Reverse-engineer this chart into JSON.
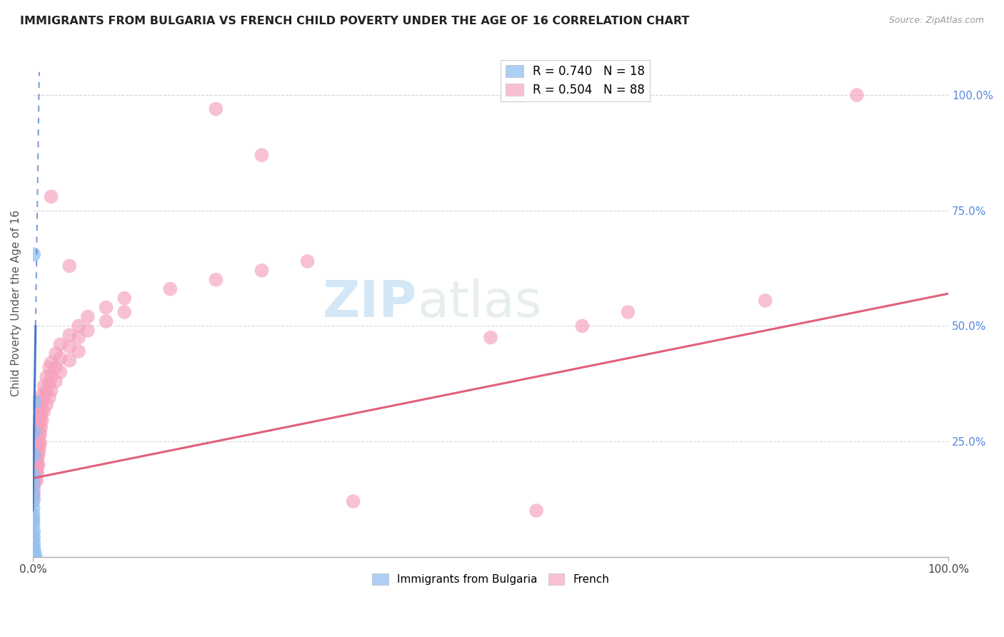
{
  "title": "IMMIGRANTS FROM BULGARIA VS FRENCH CHILD POVERTY UNDER THE AGE OF 16 CORRELATION CHART",
  "source": "Source: ZipAtlas.com",
  "ylabel": "Child Poverty Under the Age of 16",
  "xlim": [
    0.0,
    1.0
  ],
  "ylim": [
    0.0,
    1.1
  ],
  "xtick_labels": [
    "0.0%",
    "",
    "",
    "",
    "",
    "",
    "",
    "",
    "",
    "100.0%"
  ],
  "ytick_vals": [
    0.25,
    0.5,
    0.75,
    1.0
  ],
  "right_ytick_labels": [
    "25.0%",
    "50.0%",
    "75.0%",
    "100.0%"
  ],
  "legend_labels_bottom": [
    "Immigrants from Bulgaria",
    "French"
  ],
  "watermark_zip": "ZIP",
  "watermark_atlas": "atlas",
  "bulgaria_color": "#92c0f0",
  "french_color": "#f5a0bc",
  "bulgaria_line_color": "#4477cc",
  "french_line_color": "#e0607a",
  "bulgaria_scatter": [
    [
      0.001,
      0.655
    ],
    [
      0.002,
      0.335
    ],
    [
      0.001,
      0.27
    ],
    [
      0.001,
      0.22
    ],
    [
      0.001,
      0.175
    ],
    [
      0.0005,
      0.155
    ],
    [
      0.0005,
      0.135
    ],
    [
      0.0005,
      0.12
    ],
    [
      0.0005,
      0.105
    ],
    [
      0.0005,
      0.09
    ],
    [
      0.0005,
      0.08
    ],
    [
      0.0005,
      0.07
    ],
    [
      0.001,
      0.055
    ],
    [
      0.001,
      0.042
    ],
    [
      0.001,
      0.03
    ],
    [
      0.001,
      0.02
    ],
    [
      0.002,
      0.01
    ],
    [
      0.003,
      0.0
    ]
  ],
  "french_scatter": [
    [
      0.001,
      0.285
    ],
    [
      0.001,
      0.265
    ],
    [
      0.001,
      0.245
    ],
    [
      0.001,
      0.225
    ],
    [
      0.001,
      0.205
    ],
    [
      0.001,
      0.195
    ],
    [
      0.001,
      0.18
    ],
    [
      0.001,
      0.165
    ],
    [
      0.001,
      0.155
    ],
    [
      0.001,
      0.145
    ],
    [
      0.001,
      0.135
    ],
    [
      0.001,
      0.125
    ],
    [
      0.002,
      0.22
    ],
    [
      0.002,
      0.2
    ],
    [
      0.002,
      0.185
    ],
    [
      0.003,
      0.25
    ],
    [
      0.003,
      0.22
    ],
    [
      0.003,
      0.2
    ],
    [
      0.003,
      0.185
    ],
    [
      0.003,
      0.165
    ],
    [
      0.004,
      0.24
    ],
    [
      0.004,
      0.215
    ],
    [
      0.004,
      0.2
    ],
    [
      0.004,
      0.185
    ],
    [
      0.004,
      0.165
    ],
    [
      0.005,
      0.26
    ],
    [
      0.005,
      0.235
    ],
    [
      0.005,
      0.215
    ],
    [
      0.005,
      0.195
    ],
    [
      0.005,
      0.18
    ],
    [
      0.006,
      0.28
    ],
    [
      0.006,
      0.26
    ],
    [
      0.006,
      0.24
    ],
    [
      0.006,
      0.22
    ],
    [
      0.006,
      0.2
    ],
    [
      0.007,
      0.3
    ],
    [
      0.007,
      0.27
    ],
    [
      0.007,
      0.25
    ],
    [
      0.007,
      0.23
    ],
    [
      0.008,
      0.32
    ],
    [
      0.008,
      0.29
    ],
    [
      0.008,
      0.265
    ],
    [
      0.008,
      0.245
    ],
    [
      0.009,
      0.335
    ],
    [
      0.009,
      0.305
    ],
    [
      0.009,
      0.28
    ],
    [
      0.01,
      0.35
    ],
    [
      0.01,
      0.32
    ],
    [
      0.01,
      0.295
    ],
    [
      0.012,
      0.37
    ],
    [
      0.012,
      0.345
    ],
    [
      0.012,
      0.315
    ],
    [
      0.015,
      0.39
    ],
    [
      0.015,
      0.36
    ],
    [
      0.015,
      0.33
    ],
    [
      0.018,
      0.41
    ],
    [
      0.018,
      0.375
    ],
    [
      0.018,
      0.345
    ],
    [
      0.02,
      0.42
    ],
    [
      0.02,
      0.39
    ],
    [
      0.02,
      0.36
    ],
    [
      0.025,
      0.44
    ],
    [
      0.025,
      0.41
    ],
    [
      0.025,
      0.38
    ],
    [
      0.03,
      0.46
    ],
    [
      0.03,
      0.43
    ],
    [
      0.03,
      0.4
    ],
    [
      0.04,
      0.48
    ],
    [
      0.04,
      0.455
    ],
    [
      0.04,
      0.425
    ],
    [
      0.05,
      0.5
    ],
    [
      0.05,
      0.475
    ],
    [
      0.05,
      0.445
    ],
    [
      0.06,
      0.52
    ],
    [
      0.06,
      0.49
    ],
    [
      0.08,
      0.54
    ],
    [
      0.08,
      0.51
    ],
    [
      0.1,
      0.56
    ],
    [
      0.1,
      0.53
    ],
    [
      0.15,
      0.58
    ],
    [
      0.2,
      0.6
    ],
    [
      0.25,
      0.62
    ],
    [
      0.3,
      0.64
    ],
    [
      0.02,
      0.78
    ],
    [
      0.04,
      0.63
    ],
    [
      0.2,
      0.97
    ],
    [
      0.25,
      0.87
    ],
    [
      0.35,
      0.12
    ],
    [
      0.55,
      0.1
    ],
    [
      0.5,
      0.475
    ],
    [
      0.6,
      0.5
    ],
    [
      0.65,
      0.53
    ],
    [
      0.8,
      0.555
    ],
    [
      0.9,
      1.0
    ]
  ],
  "fr_line": [
    [
      0.0,
      0.17
    ],
    [
      1.0,
      0.57
    ]
  ],
  "bulg_line_solid": [
    [
      0.0,
      0.1
    ],
    [
      0.003,
      0.5
    ]
  ],
  "bulg_line_dashed": [
    [
      0.003,
      0.5
    ],
    [
      0.007,
      1.05
    ]
  ]
}
